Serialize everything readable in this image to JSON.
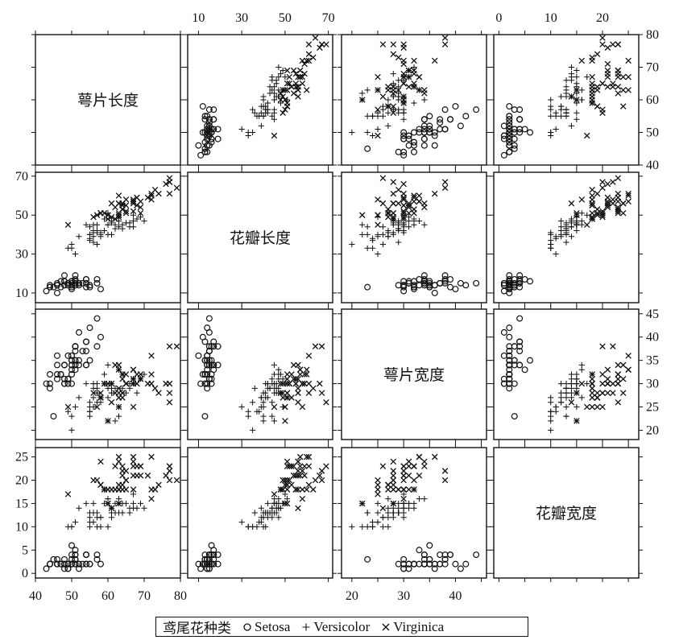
{
  "chart_data": {
    "type": "scatter",
    "variables": [
      {
        "key": "sepal_length",
        "label": "萼片长度",
        "ticks": [
          40,
          50,
          60,
          70,
          80
        ],
        "range": [
          40,
          80
        ]
      },
      {
        "key": "petal_length",
        "label": "花瓣长度",
        "ticks": [
          10,
          30,
          50,
          70
        ],
        "range": [
          5,
          72
        ]
      },
      {
        "key": "sepal_width",
        "label": "萼片宽度",
        "ticks": [
          20,
          25,
          30,
          35,
          40,
          45
        ],
        "range": [
          18,
          46
        ]
      },
      {
        "key": "petal_width",
        "label": "花瓣宽度",
        "ticks": [
          0,
          5,
          10,
          15,
          20,
          25
        ],
        "range": [
          -1,
          27
        ]
      }
    ],
    "legend": {
      "title": "鸢尾花种类",
      "entries": [
        {
          "name": "Setosa",
          "marker": "circle"
        },
        {
          "name": "Versicolor",
          "marker": "plus"
        },
        {
          "name": "Virginica",
          "marker": "cross"
        }
      ],
      "position": "bottom"
    },
    "series": [
      {
        "name": "Setosa",
        "points": [
          [
            51,
            14,
            35,
            2
          ],
          [
            49,
            14,
            30,
            2
          ],
          [
            47,
            13,
            32,
            2
          ],
          [
            46,
            15,
            31,
            2
          ],
          [
            50,
            14,
            36,
            2
          ],
          [
            54,
            17,
            39,
            4
          ],
          [
            46,
            14,
            34,
            3
          ],
          [
            50,
            15,
            34,
            2
          ],
          [
            44,
            14,
            29,
            2
          ],
          [
            49,
            15,
            31,
            1
          ],
          [
            54,
            15,
            37,
            2
          ],
          [
            48,
            16,
            34,
            2
          ],
          [
            48,
            14,
            30,
            1
          ],
          [
            43,
            11,
            30,
            1
          ],
          [
            58,
            12,
            40,
            2
          ],
          [
            57,
            15,
            44,
            4
          ],
          [
            54,
            13,
            39,
            4
          ],
          [
            51,
            14,
            35,
            3
          ],
          [
            57,
            17,
            38,
            3
          ],
          [
            51,
            15,
            38,
            3
          ],
          [
            54,
            17,
            34,
            2
          ],
          [
            51,
            15,
            37,
            4
          ],
          [
            46,
            10,
            36,
            2
          ],
          [
            51,
            17,
            33,
            5
          ],
          [
            48,
            19,
            34,
            2
          ],
          [
            50,
            16,
            30,
            2
          ],
          [
            50,
            16,
            34,
            4
          ],
          [
            52,
            15,
            35,
            2
          ],
          [
            52,
            14,
            34,
            2
          ],
          [
            47,
            16,
            32,
            2
          ],
          [
            48,
            16,
            31,
            2
          ],
          [
            54,
            15,
            34,
            4
          ],
          [
            52,
            15,
            41,
            1
          ],
          [
            55,
            14,
            42,
            2
          ],
          [
            49,
            15,
            31,
            2
          ],
          [
            50,
            12,
            32,
            2
          ],
          [
            55,
            13,
            35,
            2
          ],
          [
            49,
            14,
            36,
            1
          ],
          [
            44,
            13,
            30,
            2
          ],
          [
            51,
            15,
            34,
            2
          ],
          [
            50,
            13,
            35,
            3
          ],
          [
            45,
            13,
            23,
            3
          ],
          [
            44,
            13,
            32,
            2
          ],
          [
            50,
            16,
            35,
            6
          ],
          [
            51,
            19,
            38,
            4
          ],
          [
            48,
            14,
            30,
            3
          ],
          [
            51,
            16,
            38,
            2
          ],
          [
            46,
            14,
            32,
            2
          ],
          [
            53,
            15,
            37,
            2
          ],
          [
            50,
            14,
            33,
            2
          ]
        ]
      },
      {
        "name": "Versicolor",
        "points": [
          [
            70,
            47,
            32,
            14
          ],
          [
            64,
            45,
            32,
            15
          ],
          [
            69,
            49,
            31,
            15
          ],
          [
            55,
            40,
            23,
            13
          ],
          [
            65,
            46,
            28,
            15
          ],
          [
            57,
            45,
            28,
            13
          ],
          [
            63,
            47,
            33,
            16
          ],
          [
            49,
            33,
            24,
            10
          ],
          [
            66,
            46,
            29,
            13
          ],
          [
            52,
            39,
            27,
            14
          ],
          [
            50,
            35,
            20,
            10
          ],
          [
            59,
            42,
            30,
            15
          ],
          [
            60,
            40,
            22,
            10
          ],
          [
            61,
            47,
            29,
            14
          ],
          [
            56,
            36,
            29,
            13
          ],
          [
            67,
            44,
            31,
            14
          ],
          [
            56,
            45,
            30,
            15
          ],
          [
            58,
            41,
            27,
            10
          ],
          [
            62,
            45,
            22,
            15
          ],
          [
            56,
            39,
            25,
            11
          ],
          [
            59,
            48,
            32,
            18
          ],
          [
            61,
            40,
            28,
            13
          ],
          [
            63,
            49,
            25,
            15
          ],
          [
            61,
            47,
            28,
            12
          ],
          [
            64,
            43,
            29,
            13
          ],
          [
            66,
            44,
            30,
            14
          ],
          [
            68,
            48,
            28,
            14
          ],
          [
            67,
            50,
            30,
            17
          ],
          [
            60,
            45,
            29,
            15
          ],
          [
            57,
            35,
            26,
            10
          ],
          [
            55,
            38,
            24,
            11
          ],
          [
            55,
            37,
            24,
            10
          ],
          [
            58,
            39,
            27,
            12
          ],
          [
            60,
            51,
            27,
            16
          ],
          [
            54,
            45,
            30,
            15
          ],
          [
            60,
            45,
            34,
            16
          ],
          [
            67,
            47,
            31,
            15
          ],
          [
            63,
            44,
            23,
            13
          ],
          [
            56,
            41,
            30,
            13
          ],
          [
            55,
            40,
            25,
            13
          ],
          [
            55,
            44,
            26,
            12
          ],
          [
            61,
            46,
            30,
            14
          ],
          [
            58,
            40,
            26,
            12
          ],
          [
            50,
            33,
            23,
            10
          ],
          [
            56,
            42,
            27,
            13
          ],
          [
            57,
            42,
            30,
            12
          ],
          [
            57,
            42,
            29,
            13
          ],
          [
            62,
            43,
            29,
            13
          ],
          [
            51,
            30,
            25,
            11
          ],
          [
            57,
            41,
            28,
            13
          ]
        ]
      },
      {
        "name": "Virginica",
        "points": [
          [
            63,
            60,
            33,
            25
          ],
          [
            58,
            51,
            27,
            19
          ],
          [
            71,
            59,
            30,
            21
          ],
          [
            63,
            56,
            29,
            18
          ],
          [
            65,
            58,
            30,
            22
          ],
          [
            76,
            66,
            30,
            21
          ],
          [
            49,
            45,
            25,
            17
          ],
          [
            73,
            63,
            29,
            18
          ],
          [
            67,
            58,
            25,
            18
          ],
          [
            72,
            61,
            36,
            25
          ],
          [
            65,
            51,
            32,
            20
          ],
          [
            64,
            53,
            27,
            19
          ],
          [
            68,
            55,
            30,
            21
          ],
          [
            57,
            50,
            25,
            20
          ],
          [
            58,
            51,
            28,
            24
          ],
          [
            64,
            53,
            32,
            23
          ],
          [
            65,
            55,
            30,
            18
          ],
          [
            77,
            67,
            38,
            22
          ],
          [
            77,
            69,
            26,
            23
          ],
          [
            60,
            50,
            22,
            15
          ],
          [
            69,
            57,
            32,
            23
          ],
          [
            56,
            49,
            28,
            20
          ],
          [
            77,
            67,
            28,
            20
          ],
          [
            63,
            49,
            27,
            18
          ],
          [
            67,
            57,
            33,
            21
          ],
          [
            72,
            60,
            32,
            18
          ],
          [
            62,
            48,
            28,
            18
          ],
          [
            61,
            49,
            30,
            18
          ],
          [
            64,
            56,
            28,
            21
          ],
          [
            72,
            58,
            30,
            16
          ],
          [
            74,
            61,
            28,
            19
          ],
          [
            79,
            64,
            38,
            20
          ],
          [
            64,
            56,
            28,
            22
          ],
          [
            63,
            51,
            28,
            15
          ],
          [
            61,
            56,
            26,
            14
          ],
          [
            77,
            61,
            30,
            23
          ],
          [
            63,
            56,
            34,
            24
          ],
          [
            64,
            55,
            31,
            18
          ],
          [
            60,
            48,
            30,
            18
          ],
          [
            69,
            54,
            31,
            21
          ],
          [
            67,
            56,
            31,
            24
          ],
          [
            69,
            51,
            31,
            23
          ],
          [
            58,
            51,
            27,
            19
          ],
          [
            68,
            59,
            32,
            23
          ],
          [
            67,
            57,
            33,
            25
          ],
          [
            67,
            52,
            30,
            23
          ],
          [
            63,
            50,
            25,
            19
          ],
          [
            65,
            52,
            30,
            20
          ],
          [
            62,
            54,
            34,
            23
          ],
          [
            59,
            51,
            30,
            18
          ]
        ]
      }
    ],
    "grid": false
  }
}
